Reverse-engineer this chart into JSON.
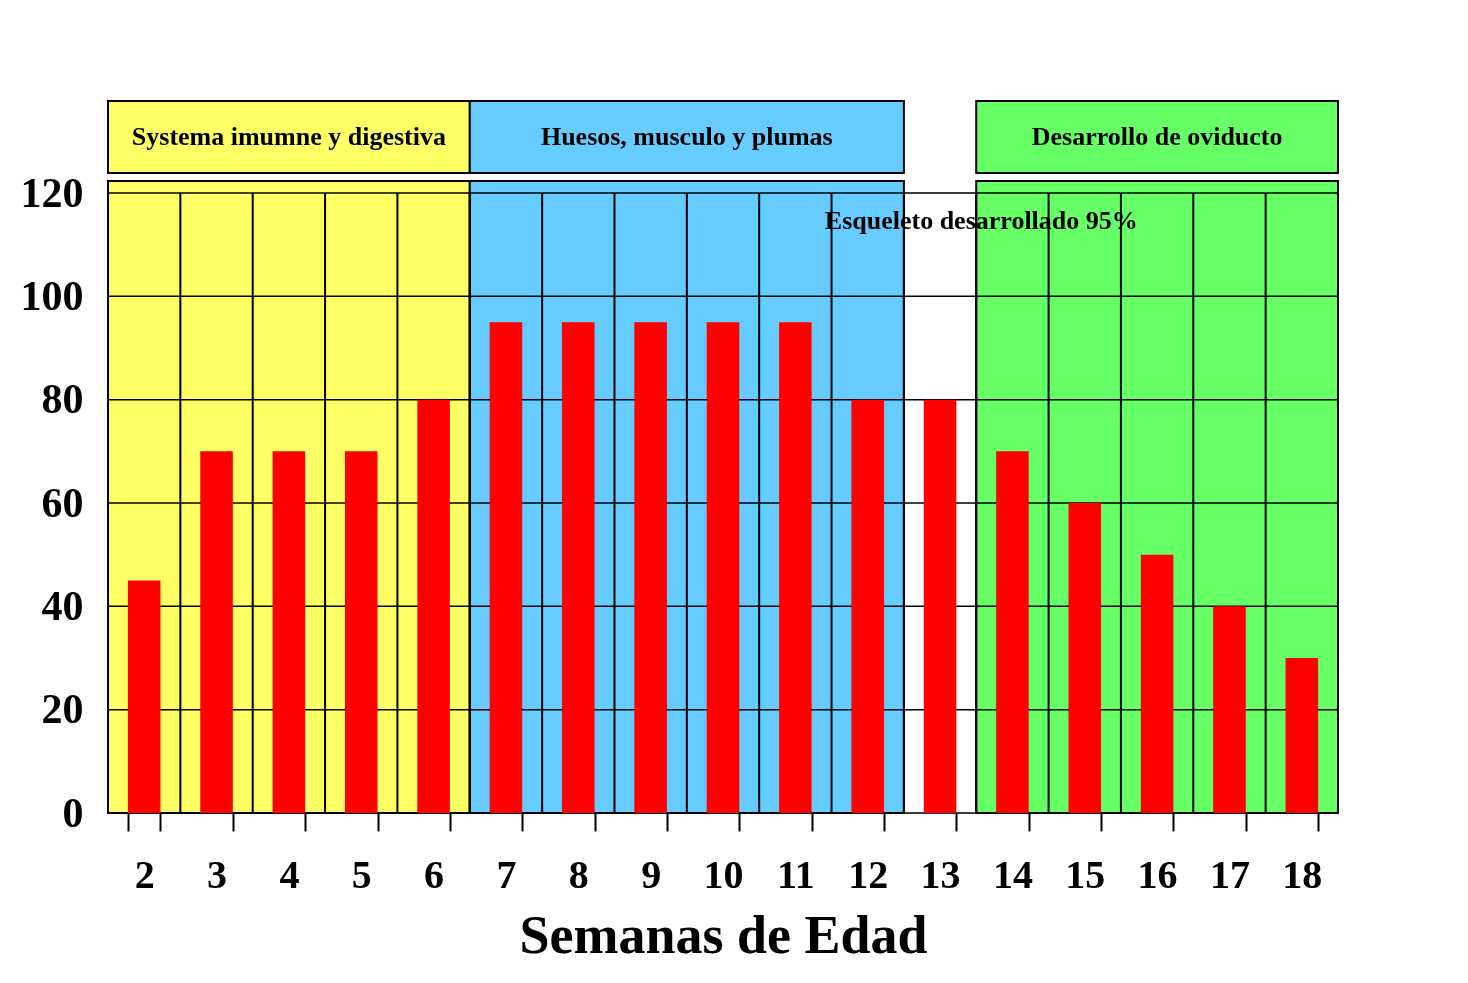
{
  "chart_data": {
    "type": "bar",
    "xlabel": "Semanas de Edad",
    "categories": [
      "2",
      "3",
      "4",
      "5",
      "6",
      "7",
      "8",
      "9",
      "10",
      "11",
      "12",
      "13",
      "14",
      "15",
      "16",
      "17",
      "18"
    ],
    "series": [
      {
        "color": "#ff0000",
        "values": [
          45,
          70,
          70,
          70,
          80,
          95,
          95,
          95,
          95,
          95,
          80,
          80,
          70,
          60,
          50,
          40,
          30
        ]
      }
    ],
    "ylim": [
      0,
      120
    ],
    "yticks": [
      0,
      20,
      40,
      60,
      80,
      100,
      120
    ],
    "grid": true,
    "bands": [
      {
        "axis": "x",
        "from": "2",
        "to": "6",
        "label": "Systema imumne y digestiva",
        "color": "#ffff66"
      },
      {
        "axis": "x",
        "from": "7",
        "to": "12",
        "label": "Huesos, musculo y plumas",
        "color": "#66ccff"
      },
      {
        "axis": "x",
        "from": "14",
        "to": "18",
        "label": "Desarrollo de oviducto",
        "color": "#66ff66"
      }
    ],
    "annotations": [
      "Esqueleto desarrollado 95%"
    ]
  }
}
